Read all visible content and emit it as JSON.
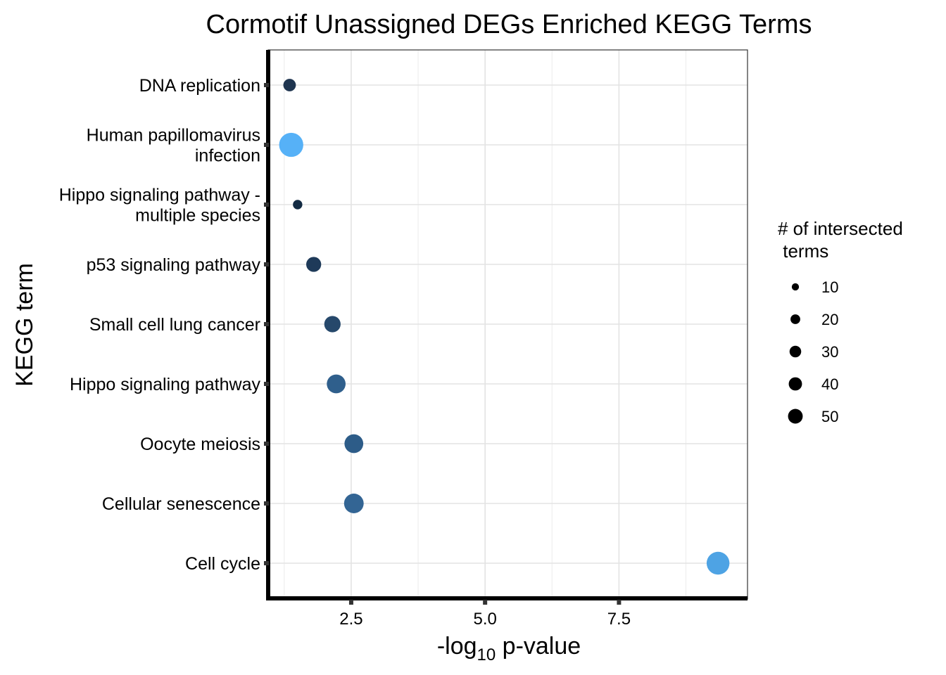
{
  "chart_data": {
    "type": "scatter",
    "title": "Cormotif Unassigned DEGs Enriched KEGG Terms",
    "xlabel": {
      "prefix": "-log",
      "subscript": "10",
      "suffix": " p-value"
    },
    "ylabel": "KEGG term",
    "xlim": [
      0.95,
      9.9
    ],
    "xticks": [
      2.5,
      5.0,
      7.5
    ],
    "xtick_labels": [
      "2.5",
      "5.0",
      "7.5"
    ],
    "points": [
      {
        "term": [
          "DNA replication"
        ],
        "x": 1.35,
        "size": 12,
        "color": "#1f3550"
      },
      {
        "term": [
          "Human papillomavirus",
          "infection"
        ],
        "x": 1.38,
        "size": 52,
        "color": "#56b1f7"
      },
      {
        "term": [
          "Hippo signaling pathway -",
          "multiple species"
        ],
        "x": 1.5,
        "size": 6,
        "color": "#132b43"
      },
      {
        "term": [
          "p53 signaling pathway"
        ],
        "x": 1.8,
        "size": 18,
        "color": "#1e3a59"
      },
      {
        "term": [
          "Small cell lung cancer"
        ],
        "x": 2.15,
        "size": 22,
        "color": "#26486b"
      },
      {
        "term": [
          "Hippo signaling pathway"
        ],
        "x": 2.22,
        "size": 30,
        "color": "#2f5f8c"
      },
      {
        "term": [
          "Oocyte meiosis"
        ],
        "x": 2.55,
        "size": 30,
        "color": "#2d5c88"
      },
      {
        "term": [
          "Cellular senescence"
        ],
        "x": 2.55,
        "size": 33,
        "color": "#336594"
      },
      {
        "term": [
          "Cell cycle"
        ],
        "x": 9.35,
        "size": 46,
        "color": "#4ea3e4"
      }
    ],
    "legend": {
      "title": [
        "# of intersected",
        " terms"
      ],
      "position": "right",
      "entries": [
        {
          "label": "10",
          "size": 10
        },
        {
          "label": "20",
          "size": 20
        },
        {
          "label": "30",
          "size": 30
        },
        {
          "label": "40",
          "size": 40
        },
        {
          "label": "50",
          "size": 50
        }
      ]
    }
  }
}
